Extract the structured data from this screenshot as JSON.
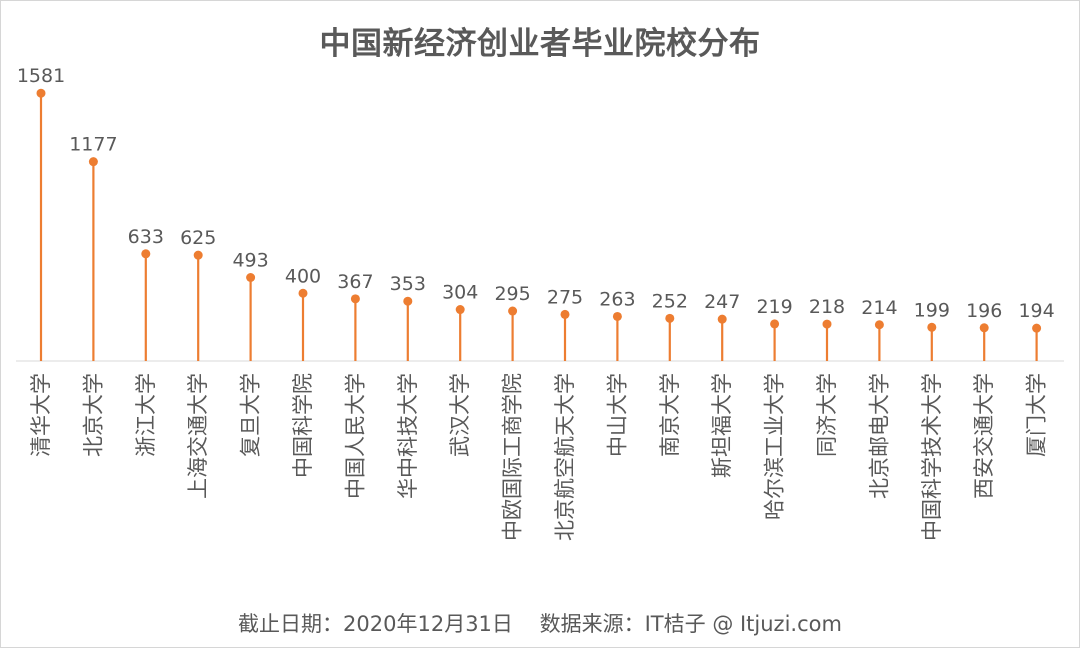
{
  "chart_data": {
    "type": "bar",
    "title": "中国新经济创业者毕业院校分布",
    "footer": "截止日期：2020年12月31日    数据来源：IT桔子 @ Itjuzi.com",
    "categories": [
      "清华大学",
      "北京大学",
      "浙江大学",
      "上海交通大学",
      "复旦大学",
      "中国科学院",
      "中国人民大学",
      "华中科技大学",
      "武汉大学",
      "中欧国际工商学院",
      "北京航空航天大学",
      "中山大学",
      "南京大学",
      "斯坦福大学",
      "哈尔滨工业大学",
      "同济大学",
      "北京邮电大学",
      "中国科学技术大学",
      "西安交通大学",
      "厦门大学"
    ],
    "values": [
      1581,
      1177,
      633,
      625,
      493,
      400,
      367,
      353,
      304,
      295,
      275,
      263,
      252,
      247,
      219,
      218,
      214,
      199,
      196,
      194
    ],
    "ylim": [
      0,
      1600
    ],
    "marker": "lollipop",
    "grid": false,
    "color": "#ED7D31"
  }
}
